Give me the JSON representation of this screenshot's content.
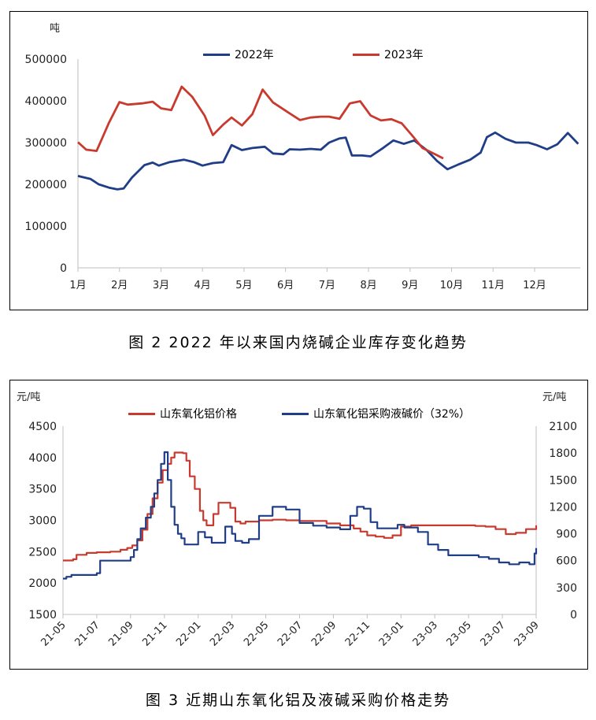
{
  "charts": {
    "inventory": {
      "unit": "吨",
      "legend": [
        {
          "label": "2022年",
          "color": "#1f3e87"
        },
        {
          "label": "2023年",
          "color": "#c93a2e"
        }
      ],
      "caption": "图 2  2022 年以来国内烧碱企业库存变化趋势"
    },
    "prices": {
      "left_unit": "元/吨",
      "right_unit": "元/吨",
      "legend": [
        {
          "label": "山东氧化铝价格",
          "color": "#c93a2e"
        },
        {
          "label": "山东氧化铝采购液碱价（32%）",
          "color": "#1f3e87"
        }
      ],
      "caption": "图 3 近期山东氧化铝及液碱采购价格走势"
    }
  },
  "chart_data": [
    {
      "type": "line",
      "ylabel": "吨",
      "ylim": [
        0,
        500000
      ],
      "yticks": [
        0,
        100000,
        200000,
        300000,
        400000,
        500000
      ],
      "xticks": [
        "1月",
        "2月",
        "3月",
        "4月",
        "5月",
        "6月",
        "7月",
        "8月",
        "9月",
        "10月",
        "11月",
        "12月"
      ],
      "xlim": [
        1,
        13.1
      ],
      "series": [
        {
          "name": "2022年",
          "color": "#1f3e87",
          "x": [
            1,
            1.3,
            1.5,
            1.75,
            1.95,
            2.1,
            2.3,
            2.6,
            2.8,
            2.95,
            3.2,
            3.55,
            3.8,
            4.0,
            4.25,
            4.5,
            4.7,
            4.95,
            5.2,
            5.5,
            5.7,
            5.95,
            6.1,
            6.35,
            6.6,
            6.85,
            7.05,
            7.3,
            7.45,
            7.6,
            7.85,
            8.05,
            8.35,
            8.6,
            8.85,
            9.1,
            9.4,
            9.65,
            9.9,
            10.15,
            10.45,
            10.7,
            10.85,
            11.05,
            11.3,
            11.55,
            11.85,
            12.05,
            12.3,
            12.55,
            12.8,
            13.05
          ],
          "values": [
            220000,
            213000,
            200000,
            192000,
            188000,
            190000,
            216000,
            246000,
            252000,
            245000,
            253000,
            259000,
            253000,
            245000,
            251000,
            253000,
            294000,
            282000,
            287000,
            290000,
            274000,
            272000,
            284000,
            283000,
            285000,
            283000,
            300000,
            310000,
            312000,
            269000,
            269000,
            267000,
            287000,
            305000,
            297000,
            305000,
            282000,
            256000,
            236000,
            247000,
            259000,
            276000,
            313000,
            324000,
            309000,
            300000,
            300000,
            294000,
            284000,
            296000,
            323000,
            297000
          ]
        },
        {
          "name": "2023年",
          "color": "#c93a2e",
          "x": [
            1,
            1.2,
            1.45,
            1.75,
            2.0,
            2.2,
            2.55,
            2.8,
            3.0,
            3.25,
            3.5,
            3.75,
            4.05,
            4.25,
            4.5,
            4.7,
            4.95,
            5.2,
            5.45,
            5.7,
            6.1,
            6.35,
            6.6,
            6.85,
            7.05,
            7.3,
            7.55,
            7.8,
            8.05,
            8.3,
            8.55,
            8.8,
            9.05,
            9.3,
            9.6,
            9.8
          ],
          "values": [
            301000,
            283000,
            280000,
            348000,
            397000,
            391000,
            394000,
            398000,
            382000,
            378000,
            434000,
            410000,
            365000,
            318000,
            343000,
            360000,
            341000,
            368000,
            427000,
            396000,
            370000,
            354000,
            360000,
            362000,
            362000,
            357000,
            394000,
            399000,
            365000,
            353000,
            356000,
            346000,
            317000,
            287000,
            272000,
            262000
          ]
        }
      ]
    },
    {
      "type": "line",
      "xticks": [
        "21-05",
        "21-07",
        "21-09",
        "21-11",
        "22-01",
        "22-03",
        "22-05",
        "22-07",
        "22-09",
        "22-11",
        "23-01",
        "23-03",
        "23-05",
        "23-07",
        "23-09"
      ],
      "xlim": [
        0,
        14
      ],
      "ylim": [
        1500,
        4500
      ],
      "yticks": [
        1500,
        2000,
        2500,
        3000,
        3500,
        4000,
        4500
      ],
      "y2lim": [
        0,
        2100
      ],
      "y2ticks": [
        0,
        300,
        600,
        900,
        1200,
        1500,
        1800,
        2100
      ],
      "ylabel": "元/吨",
      "y2label": "元/吨",
      "series": [
        {
          "name": "山东氧化铝价格",
          "color": "#c93a2e",
          "axis": "left",
          "x": [
            0,
            0.3,
            0.4,
            0.7,
            1.0,
            1.4,
            1.7,
            1.9,
            2.05,
            2.2,
            2.35,
            2.5,
            2.65,
            2.8,
            2.95,
            3.1,
            3.2,
            3.3,
            3.4,
            3.55,
            3.65,
            3.75,
            3.9,
            4.05,
            4.15,
            4.25,
            4.35,
            4.45,
            4.6,
            4.75,
            4.95,
            5.1,
            5.25,
            5.4,
            5.6,
            5.8,
            6.2,
            6.6,
            7.0,
            7.4,
            7.8,
            8.2,
            8.6,
            8.8,
            9.0,
            9.25,
            9.5,
            9.75,
            10.0,
            10.3,
            10.6,
            11.0,
            11.4,
            11.8,
            12.2,
            12.5,
            12.8,
            13.1,
            13.4,
            13.7,
            14.0
          ],
          "values": [
            2360,
            2380,
            2450,
            2480,
            2490,
            2500,
            2530,
            2560,
            2600,
            2680,
            2850,
            3100,
            3350,
            3600,
            3800,
            3900,
            4000,
            4080,
            4080,
            4070,
            3950,
            3700,
            3500,
            3150,
            3000,
            2920,
            2920,
            3100,
            3280,
            3280,
            3200,
            2980,
            2950,
            2980,
            2980,
            3000,
            3010,
            3000,
            2990,
            2990,
            2950,
            2920,
            2870,
            2820,
            2760,
            2740,
            2720,
            2760,
            2900,
            2920,
            2920,
            2920,
            2920,
            2920,
            2910,
            2900,
            2860,
            2780,
            2800,
            2860,
            2920
          ]
        },
        {
          "name": "山东氧化铝采购液碱价（32%）",
          "color": "#1f3e87",
          "axis": "right",
          "x": [
            0,
            0.1,
            0.25,
            0.9,
            1.0,
            1.1,
            1.9,
            2.0,
            2.1,
            2.2,
            2.3,
            2.45,
            2.6,
            2.7,
            2.8,
            2.9,
            3.0,
            3.1,
            3.2,
            3.3,
            3.4,
            3.5,
            3.6,
            3.8,
            4.0,
            4.2,
            4.4,
            4.6,
            4.8,
            5.0,
            5.1,
            5.3,
            5.5,
            5.8,
            6.2,
            6.6,
            7.0,
            7.4,
            7.8,
            8.2,
            8.4,
            8.5,
            8.7,
            8.9,
            9.1,
            9.3,
            9.6,
            9.9,
            10.1,
            10.5,
            10.8,
            11.1,
            11.4,
            11.7,
            12.0,
            12.3,
            12.6,
            12.9,
            13.2,
            13.5,
            13.8,
            13.95,
            14.0
          ],
          "values": [
            400,
            420,
            440,
            440,
            460,
            600,
            600,
            640,
            720,
            840,
            960,
            1080,
            1200,
            1350,
            1500,
            1680,
            1810,
            1500,
            1200,
            1000,
            900,
            850,
            780,
            780,
            920,
            860,
            800,
            800,
            980,
            900,
            820,
            800,
            840,
            1100,
            1200,
            1170,
            1020,
            990,
            970,
            950,
            950,
            1100,
            1200,
            1180,
            1030,
            960,
            960,
            1000,
            970,
            920,
            780,
            720,
            660,
            660,
            660,
            640,
            620,
            580,
            560,
            580,
            560,
            680,
            740
          ]
        }
      ]
    }
  ]
}
